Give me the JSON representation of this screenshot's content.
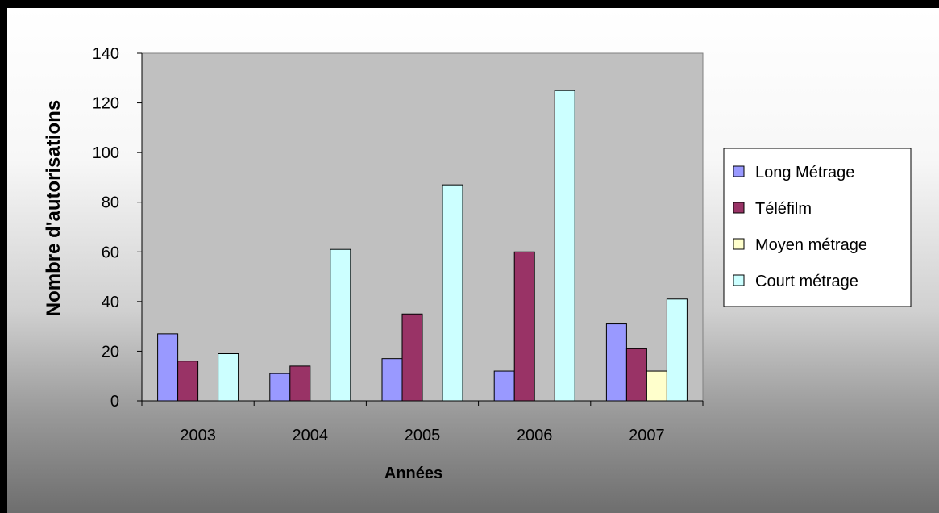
{
  "chart_data": {
    "type": "bar",
    "categories": [
      "2003",
      "2004",
      "2005",
      "2006",
      "2007"
    ],
    "series": [
      {
        "name": "Long Métrage",
        "color": "#9999ff",
        "values": [
          27,
          11,
          17,
          12,
          31
        ]
      },
      {
        "name": "Téléfilm",
        "color": "#993366",
        "values": [
          16,
          14,
          35,
          60,
          21
        ]
      },
      {
        "name": "Moyen métrage",
        "color": "#ffffcc",
        "values": [
          0,
          0,
          0,
          0,
          12
        ]
      },
      {
        "name": "Court métrage",
        "color": "#ccffff",
        "values": [
          19,
          61,
          87,
          125,
          41
        ]
      }
    ],
    "xlabel": "Années",
    "ylabel": "Nombre d'autorisations",
    "ylim": [
      0,
      140
    ],
    "yticks": [
      "0",
      "20",
      "40",
      "60",
      "80",
      "100",
      "120",
      "140"
    ],
    "grid": false,
    "plot_background": "#c0c0c0",
    "legend_position": "right"
  }
}
